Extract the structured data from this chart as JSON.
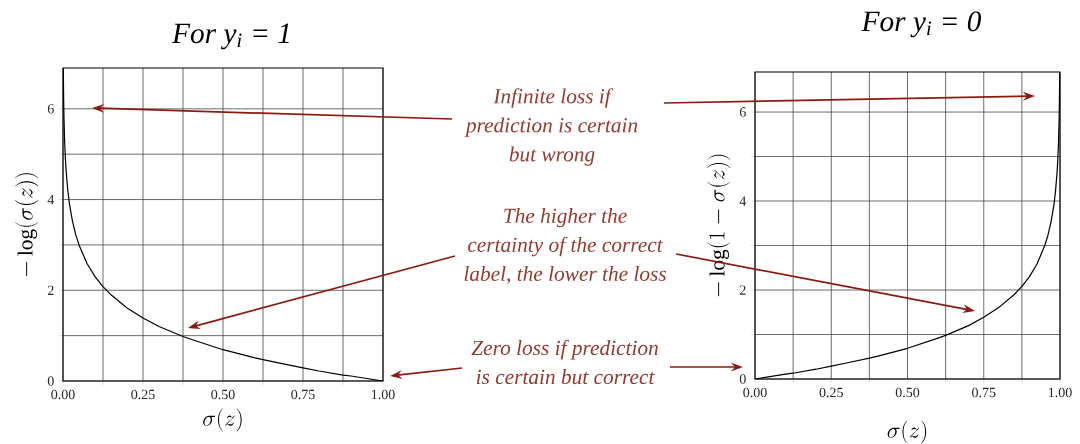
{
  "chart_data": [
    {
      "type": "line",
      "title": "For y$_{i}$ = 1",
      "xlabel": "\\sigma(z)",
      "ylabel": "-\\log(\\sigma(z))",
      "x": [
        0.001,
        0.002,
        0.003,
        0.005,
        0.0075,
        0.01,
        0.015,
        0.02,
        0.03,
        0.04,
        0.05,
        0.075,
        0.1,
        0.125,
        0.15,
        0.2,
        0.25,
        0.3,
        0.375,
        0.4,
        0.5,
        0.6,
        0.625,
        0.7,
        0.75,
        0.8,
        0.875,
        0.9,
        1
      ],
      "series": [
        {
          "color": "#000000",
          "values": [
            6.9,
            6.21,
            5.81,
            5.3,
            4.89,
            4.61,
            4.2,
            3.91,
            3.51,
            3.22,
            3.0,
            2.59,
            2.3,
            2.08,
            1.9,
            1.61,
            1.39,
            1.2,
            0.98,
            0.92,
            0.69,
            0.51,
            0.47,
            0.36,
            0.29,
            0.22,
            0.13,
            0.11,
            0
          ]
        }
      ],
      "xlim": [
        0,
        1
      ],
      "ylim": [
        0,
        6.9
      ],
      "xticks": [
        {
          "value": 0,
          "label": "0.00"
        },
        {
          "value": 0.125,
          "label": null
        },
        {
          "value": 0.25,
          "label": "0.25"
        },
        {
          "value": 0.375,
          "label": null
        },
        {
          "value": 0.5,
          "label": "0.50"
        },
        {
          "value": 0.625,
          "label": null
        },
        {
          "value": 0.75,
          "label": "0.75"
        },
        {
          "value": 0.875,
          "label": null
        },
        {
          "value": 1,
          "label": "1.00"
        }
      ],
      "yticks": [
        0,
        {
          "value": 1,
          "label": null
        },
        2,
        {
          "value": 3,
          "label": null
        },
        4,
        {
          "value": 5,
          "label": null
        },
        6
      ],
      "grid": true,
      "annotations": [
        "Infinite loss if prediction is certain but wrong",
        "The higher the certainty of the correct label, the lower the loss",
        "Zero loss if prediction is certain but correct"
      ]
    },
    {
      "type": "line",
      "title": "For y$_{i}$ = 0",
      "xlabel": "\\sigma(z)",
      "ylabel": "-\\log(1-\\sigma(z))",
      "x": [
        0,
        0.1,
        0.125,
        0.2,
        0.25,
        0.3,
        0.375,
        0.4,
        0.5,
        0.6,
        0.625,
        0.7,
        0.75,
        0.8,
        0.85,
        0.875,
        0.9,
        0.925,
        0.95,
        0.96,
        0.97,
        0.98,
        0.985,
        0.99,
        0.9925,
        0.995,
        0.997,
        0.998,
        0.999
      ],
      "series": [
        {
          "color": "#000000",
          "values": [
            0,
            0.11,
            0.13,
            0.22,
            0.29,
            0.36,
            0.47,
            0.51,
            0.69,
            0.92,
            0.98,
            1.2,
            1.39,
            1.61,
            1.9,
            2.08,
            2.3,
            2.59,
            3.0,
            3.22,
            3.51,
            3.91,
            4.2,
            4.61,
            4.89,
            5.3,
            5.81,
            6.21,
            6.9
          ]
        }
      ],
      "xlim": [
        0,
        1
      ],
      "ylim": [
        0,
        6.9
      ],
      "xticks": [
        {
          "value": 0,
          "label": "0.00"
        },
        {
          "value": 0.125,
          "label": null
        },
        {
          "value": 0.25,
          "label": "0.25"
        },
        {
          "value": 0.375,
          "label": null
        },
        {
          "value": 0.5,
          "label": "0.50"
        },
        {
          "value": 0.625,
          "label": null
        },
        {
          "value": 0.75,
          "label": "0.75"
        },
        {
          "value": 0.875,
          "label": null
        },
        {
          "value": 1,
          "label": "1.00"
        }
      ],
      "yticks": [
        0,
        {
          "value": 1,
          "label": null
        },
        2,
        {
          "value": 3,
          "label": null
        },
        4,
        {
          "value": 5,
          "label": null
        },
        6
      ],
      "grid": true
    }
  ]
}
